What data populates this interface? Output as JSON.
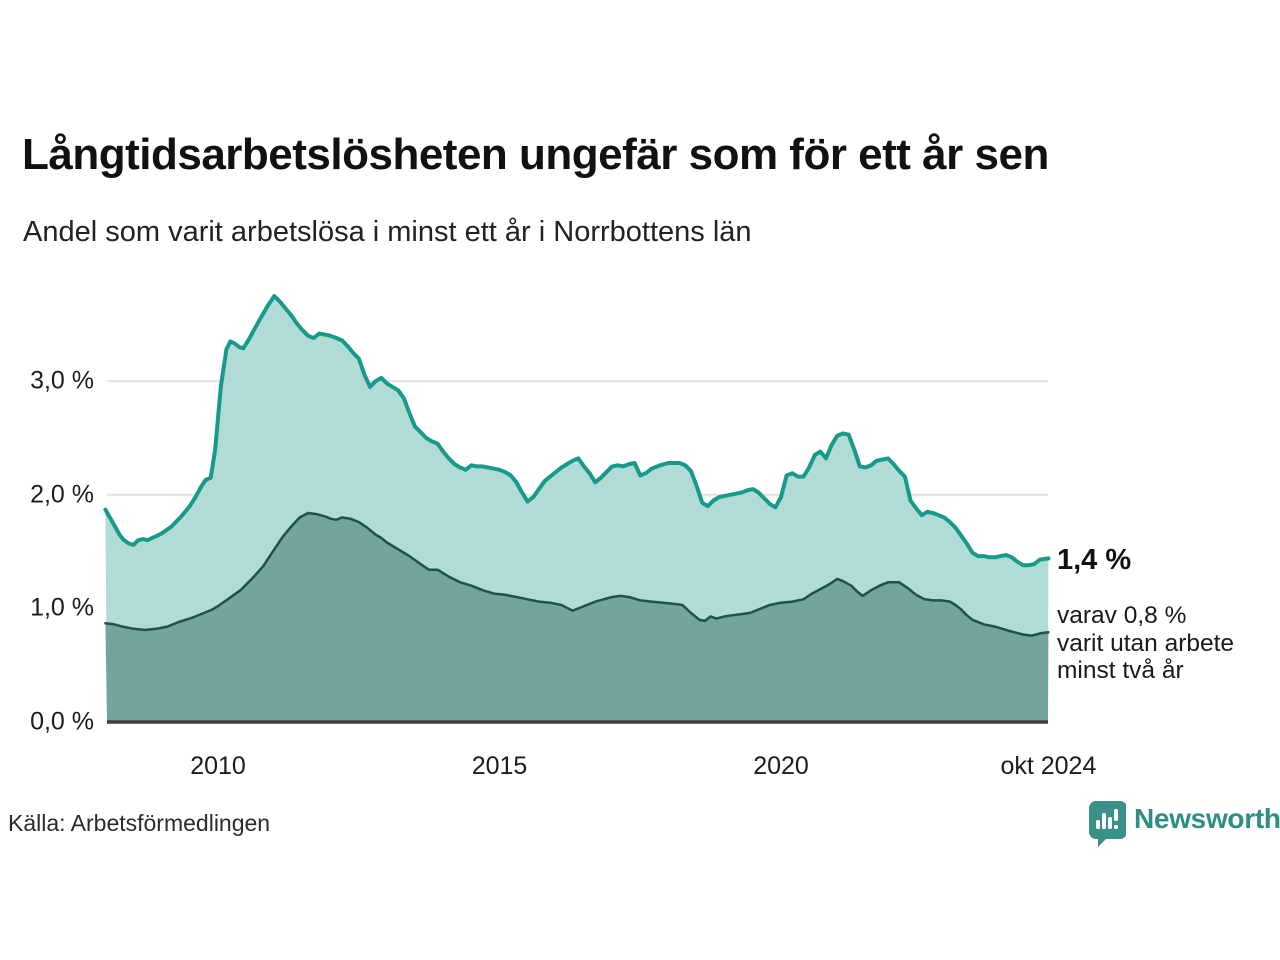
{
  "header": {
    "title": "Långtidsarbetslösheten ungefär som för ett år sen",
    "subtitle": "Andel som varit arbetslösa i minst ett år i Norrbottens län"
  },
  "chart_data": {
    "type": "area",
    "title": "Långtidsarbetslösheten ungefär som för ett år sen",
    "subtitle": "Andel som varit arbetslösa i minst ett år i Norrbottens län",
    "xlabel": "",
    "ylabel": "",
    "x_range": [
      2008.0,
      2024.83
    ],
    "ylim": [
      0,
      3.9
    ],
    "grid": "horizontal",
    "legend_position": "none",
    "y_axis": {
      "ticks": [
        {
          "label": "0,0 %",
          "value": 0
        },
        {
          "label": "1,0 %",
          "value": 1
        },
        {
          "label": "2,0 %",
          "value": 2
        },
        {
          "label": "3,0 %",
          "value": 3
        }
      ]
    },
    "x_axis": {
      "ticks": [
        {
          "label": "2010",
          "year": 2010
        },
        {
          "label": "2015",
          "year": 2015
        },
        {
          "label": "2020",
          "year": 2020
        },
        {
          "label": "okt 2024",
          "year": 2024.75
        }
      ]
    },
    "series": [
      {
        "name": "Arbetslösa minst ett år",
        "latest_label": "1,4 %",
        "line_color": "#189a8b",
        "fill_color": "#b1dcd5",
        "line_width": 4,
        "points": [
          [
            2008.0,
            1.87
          ],
          [
            2008.08,
            1.8
          ],
          [
            2008.17,
            1.72
          ],
          [
            2008.25,
            1.65
          ],
          [
            2008.33,
            1.6
          ],
          [
            2008.42,
            1.57
          ],
          [
            2008.5,
            1.56
          ],
          [
            2008.58,
            1.6
          ],
          [
            2008.67,
            1.61
          ],
          [
            2008.75,
            1.6
          ],
          [
            2008.83,
            1.62
          ],
          [
            2008.92,
            1.64
          ],
          [
            2009.0,
            1.66
          ],
          [
            2009.17,
            1.72
          ],
          [
            2009.33,
            1.8
          ],
          [
            2009.5,
            1.9
          ],
          [
            2009.6,
            1.98
          ],
          [
            2009.7,
            2.07
          ],
          [
            2009.78,
            2.13
          ],
          [
            2009.87,
            2.15
          ],
          [
            2009.95,
            2.4
          ],
          [
            2010.05,
            2.95
          ],
          [
            2010.15,
            3.28
          ],
          [
            2010.22,
            3.35
          ],
          [
            2010.3,
            3.33
          ],
          [
            2010.38,
            3.3
          ],
          [
            2010.45,
            3.29
          ],
          [
            2010.55,
            3.37
          ],
          [
            2010.65,
            3.46
          ],
          [
            2010.75,
            3.55
          ],
          [
            2010.88,
            3.66
          ],
          [
            2011.0,
            3.75
          ],
          [
            2011.1,
            3.7
          ],
          [
            2011.2,
            3.64
          ],
          [
            2011.3,
            3.58
          ],
          [
            2011.4,
            3.51
          ],
          [
            2011.5,
            3.45
          ],
          [
            2011.6,
            3.4
          ],
          [
            2011.7,
            3.38
          ],
          [
            2011.8,
            3.42
          ],
          [
            2011.9,
            3.41
          ],
          [
            2012.0,
            3.4
          ],
          [
            2012.1,
            3.38
          ],
          [
            2012.2,
            3.36
          ],
          [
            2012.3,
            3.31
          ],
          [
            2012.4,
            3.25
          ],
          [
            2012.5,
            3.2
          ],
          [
            2012.6,
            3.06
          ],
          [
            2012.7,
            2.95
          ],
          [
            2012.8,
            3.0
          ],
          [
            2012.9,
            3.03
          ],
          [
            2013.0,
            2.98
          ],
          [
            2013.1,
            2.95
          ],
          [
            2013.2,
            2.92
          ],
          [
            2013.3,
            2.85
          ],
          [
            2013.4,
            2.72
          ],
          [
            2013.5,
            2.6
          ],
          [
            2013.6,
            2.55
          ],
          [
            2013.7,
            2.5
          ],
          [
            2013.8,
            2.47
          ],
          [
            2013.9,
            2.45
          ],
          [
            2014.0,
            2.38
          ],
          [
            2014.1,
            2.32
          ],
          [
            2014.2,
            2.27
          ],
          [
            2014.3,
            2.24
          ],
          [
            2014.4,
            2.22
          ],
          [
            2014.5,
            2.26
          ],
          [
            2014.6,
            2.25
          ],
          [
            2014.7,
            2.25
          ],
          [
            2014.8,
            2.24
          ],
          [
            2014.9,
            2.23
          ],
          [
            2015.0,
            2.22
          ],
          [
            2015.1,
            2.2
          ],
          [
            2015.2,
            2.17
          ],
          [
            2015.3,
            2.11
          ],
          [
            2015.4,
            2.02
          ],
          [
            2015.5,
            1.94
          ],
          [
            2015.6,
            1.98
          ],
          [
            2015.7,
            2.05
          ],
          [
            2015.8,
            2.12
          ],
          [
            2015.9,
            2.16
          ],
          [
            2016.0,
            2.2
          ],
          [
            2016.1,
            2.24
          ],
          [
            2016.2,
            2.27
          ],
          [
            2016.3,
            2.3
          ],
          [
            2016.4,
            2.32
          ],
          [
            2016.5,
            2.25
          ],
          [
            2016.6,
            2.19
          ],
          [
            2016.7,
            2.11
          ],
          [
            2016.8,
            2.15
          ],
          [
            2016.9,
            2.2
          ],
          [
            2017.0,
            2.25
          ],
          [
            2017.1,
            2.26
          ],
          [
            2017.2,
            2.25
          ],
          [
            2017.3,
            2.27
          ],
          [
            2017.4,
            2.28
          ],
          [
            2017.5,
            2.17
          ],
          [
            2017.6,
            2.19
          ],
          [
            2017.7,
            2.23
          ],
          [
            2017.85,
            2.26
          ],
          [
            2018.0,
            2.28
          ],
          [
            2018.1,
            2.28
          ],
          [
            2018.2,
            2.28
          ],
          [
            2018.3,
            2.26
          ],
          [
            2018.4,
            2.21
          ],
          [
            2018.5,
            2.08
          ],
          [
            2018.6,
            1.93
          ],
          [
            2018.7,
            1.9
          ],
          [
            2018.8,
            1.95
          ],
          [
            2018.9,
            1.98
          ],
          [
            2019.0,
            1.99
          ],
          [
            2019.1,
            2.0
          ],
          [
            2019.2,
            2.01
          ],
          [
            2019.3,
            2.02
          ],
          [
            2019.4,
            2.04
          ],
          [
            2019.5,
            2.05
          ],
          [
            2019.6,
            2.02
          ],
          [
            2019.7,
            1.97
          ],
          [
            2019.8,
            1.92
          ],
          [
            2019.9,
            1.89
          ],
          [
            2020.0,
            1.98
          ],
          [
            2020.1,
            2.17
          ],
          [
            2020.2,
            2.19
          ],
          [
            2020.3,
            2.16
          ],
          [
            2020.4,
            2.16
          ],
          [
            2020.5,
            2.24
          ],
          [
            2020.6,
            2.35
          ],
          [
            2020.7,
            2.38
          ],
          [
            2020.8,
            2.32
          ],
          [
            2020.9,
            2.44
          ],
          [
            2021.0,
            2.52
          ],
          [
            2021.1,
            2.54
          ],
          [
            2021.2,
            2.53
          ],
          [
            2021.3,
            2.4
          ],
          [
            2021.4,
            2.25
          ],
          [
            2021.5,
            2.24
          ],
          [
            2021.6,
            2.26
          ],
          [
            2021.7,
            2.3
          ],
          [
            2021.8,
            2.31
          ],
          [
            2021.9,
            2.32
          ],
          [
            2022.0,
            2.27
          ],
          [
            2022.1,
            2.21
          ],
          [
            2022.2,
            2.16
          ],
          [
            2022.3,
            1.95
          ],
          [
            2022.4,
            1.88
          ],
          [
            2022.5,
            1.82
          ],
          [
            2022.6,
            1.85
          ],
          [
            2022.7,
            1.84
          ],
          [
            2022.8,
            1.82
          ],
          [
            2022.9,
            1.8
          ],
          [
            2023.0,
            1.76
          ],
          [
            2023.1,
            1.71
          ],
          [
            2023.2,
            1.64
          ],
          [
            2023.3,
            1.57
          ],
          [
            2023.4,
            1.49
          ],
          [
            2023.5,
            1.46
          ],
          [
            2023.6,
            1.46
          ],
          [
            2023.7,
            1.45
          ],
          [
            2023.8,
            1.45
          ],
          [
            2023.9,
            1.46
          ],
          [
            2024.0,
            1.47
          ],
          [
            2024.1,
            1.45
          ],
          [
            2024.2,
            1.41
          ],
          [
            2024.3,
            1.38
          ],
          [
            2024.4,
            1.38
          ],
          [
            2024.5,
            1.39
          ],
          [
            2024.6,
            1.43
          ],
          [
            2024.75,
            1.44
          ]
        ]
      },
      {
        "name": "Utan arbete minst två år",
        "latest_label": "0,8 %",
        "line_color": "#22504a",
        "fill_color": "#74a59c",
        "line_width": 2.5,
        "points": [
          [
            2008.0,
            0.87
          ],
          [
            2008.15,
            0.86
          ],
          [
            2008.3,
            0.84
          ],
          [
            2008.5,
            0.82
          ],
          [
            2008.7,
            0.81
          ],
          [
            2008.9,
            0.82
          ],
          [
            2009.1,
            0.84
          ],
          [
            2009.3,
            0.88
          ],
          [
            2009.5,
            0.91
          ],
          [
            2009.7,
            0.95
          ],
          [
            2009.9,
            0.99
          ],
          [
            2010.0,
            1.02
          ],
          [
            2010.2,
            1.09
          ],
          [
            2010.4,
            1.16
          ],
          [
            2010.6,
            1.26
          ],
          [
            2010.8,
            1.37
          ],
          [
            2011.0,
            1.52
          ],
          [
            2011.15,
            1.63
          ],
          [
            2011.3,
            1.72
          ],
          [
            2011.45,
            1.8
          ],
          [
            2011.6,
            1.84
          ],
          [
            2011.75,
            1.83
          ],
          [
            2011.9,
            1.81
          ],
          [
            2012.0,
            1.79
          ],
          [
            2012.1,
            1.78
          ],
          [
            2012.2,
            1.8
          ],
          [
            2012.35,
            1.79
          ],
          [
            2012.5,
            1.76
          ],
          [
            2012.65,
            1.71
          ],
          [
            2012.8,
            1.65
          ],
          [
            2012.9,
            1.62
          ],
          [
            2013.0,
            1.58
          ],
          [
            2013.2,
            1.52
          ],
          [
            2013.4,
            1.46
          ],
          [
            2013.6,
            1.39
          ],
          [
            2013.75,
            1.34
          ],
          [
            2013.9,
            1.34
          ],
          [
            2014.1,
            1.28
          ],
          [
            2014.3,
            1.23
          ],
          [
            2014.5,
            1.2
          ],
          [
            2014.7,
            1.16
          ],
          [
            2014.9,
            1.13
          ],
          [
            2015.1,
            1.12
          ],
          [
            2015.3,
            1.1
          ],
          [
            2015.5,
            1.08
          ],
          [
            2015.7,
            1.06
          ],
          [
            2015.9,
            1.05
          ],
          [
            2016.1,
            1.03
          ],
          [
            2016.3,
            0.98
          ],
          [
            2016.5,
            1.02
          ],
          [
            2016.7,
            1.06
          ],
          [
            2016.85,
            1.08
          ],
          [
            2017.0,
            1.1
          ],
          [
            2017.15,
            1.11
          ],
          [
            2017.3,
            1.1
          ],
          [
            2017.5,
            1.07
          ],
          [
            2017.7,
            1.06
          ],
          [
            2017.9,
            1.05
          ],
          [
            2018.1,
            1.04
          ],
          [
            2018.25,
            1.03
          ],
          [
            2018.4,
            0.96
          ],
          [
            2018.55,
            0.9
          ],
          [
            2018.65,
            0.89
          ],
          [
            2018.75,
            0.93
          ],
          [
            2018.85,
            0.91
          ],
          [
            2019.0,
            0.93
          ],
          [
            2019.15,
            0.94
          ],
          [
            2019.3,
            0.95
          ],
          [
            2019.45,
            0.96
          ],
          [
            2019.6,
            0.99
          ],
          [
            2019.8,
            1.03
          ],
          [
            2020.0,
            1.05
          ],
          [
            2020.2,
            1.06
          ],
          [
            2020.4,
            1.08
          ],
          [
            2020.55,
            1.13
          ],
          [
            2020.7,
            1.17
          ],
          [
            2020.85,
            1.21
          ],
          [
            2021.0,
            1.26
          ],
          [
            2021.1,
            1.24
          ],
          [
            2021.25,
            1.2
          ],
          [
            2021.35,
            1.15
          ],
          [
            2021.45,
            1.11
          ],
          [
            2021.6,
            1.16
          ],
          [
            2021.75,
            1.2
          ],
          [
            2021.9,
            1.23
          ],
          [
            2022.0,
            1.23
          ],
          [
            2022.1,
            1.23
          ],
          [
            2022.25,
            1.18
          ],
          [
            2022.4,
            1.12
          ],
          [
            2022.55,
            1.08
          ],
          [
            2022.7,
            1.07
          ],
          [
            2022.85,
            1.07
          ],
          [
            2023.0,
            1.06
          ],
          [
            2023.1,
            1.03
          ],
          [
            2023.2,
            0.99
          ],
          [
            2023.3,
            0.94
          ],
          [
            2023.4,
            0.9
          ],
          [
            2023.6,
            0.86
          ],
          [
            2023.8,
            0.84
          ],
          [
            2024.0,
            0.81
          ],
          [
            2024.15,
            0.79
          ],
          [
            2024.3,
            0.77
          ],
          [
            2024.45,
            0.76
          ],
          [
            2024.6,
            0.78
          ],
          [
            2024.75,
            0.79
          ]
        ]
      }
    ],
    "colors": {
      "gridline": "#e2e2e2",
      "baseline": "#3f3f3f",
      "background": "#ffffff"
    }
  },
  "annotations": {
    "latest_value": "1,4 %",
    "subseries_lines": [
      "varav 0,8 %",
      "varit utan arbete",
      "minst två år"
    ]
  },
  "footer": {
    "source": "Källa: Arbetsförmedlingen",
    "brand": "Newsworthy",
    "brand_color": "#2e8e83",
    "brand_icon_color": "#3b9187",
    "brand_icon": "bar-chart-speech-bubble"
  }
}
